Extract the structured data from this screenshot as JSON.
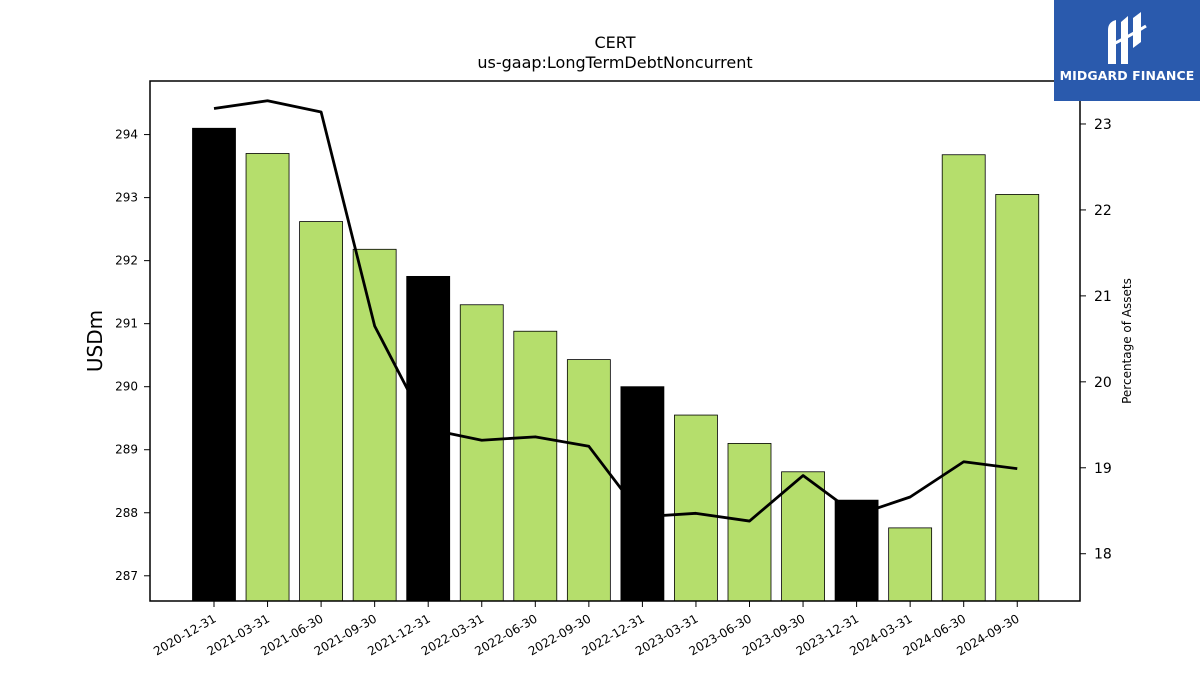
{
  "chart_data": {
    "type": "bar",
    "title": "CERT",
    "subtitle": "us-gaap:LongTermDebtNoncurrent",
    "ylabel": "USDm",
    "y2label": "Percentage of Assets",
    "categories": [
      "2020-12-31",
      "2021-03-31",
      "2021-06-30",
      "2021-09-30",
      "2021-12-31",
      "2022-03-31",
      "2022-06-30",
      "2022-09-30",
      "2022-12-31",
      "2023-03-31",
      "2023-06-30",
      "2023-09-30",
      "2023-12-31",
      "2024-03-31",
      "2024-06-30",
      "2024-09-30"
    ],
    "series": [
      {
        "type": "bar",
        "values": [
          294.1,
          293.7,
          292.62,
          292.18,
          291.75,
          291.3,
          290.88,
          290.43,
          290.0,
          289.55,
          289.1,
          288.65,
          288.2,
          287.76,
          293.68,
          293.05
        ],
        "colors": [
          "#000000",
          "#b5de6c",
          "#b5de6c",
          "#b5de6c",
          "#000000",
          "#b5de6c",
          "#b5de6c",
          "#b5de6c",
          "#000000",
          "#b5de6c",
          "#b5de6c",
          "#b5de6c",
          "#000000",
          "#b5de6c",
          "#b5de6c",
          "#b5de6c"
        ]
      },
      {
        "type": "line",
        "axis": "right",
        "values": [
          23.18,
          23.27,
          23.14,
          20.65,
          19.45,
          19.32,
          19.36,
          19.25,
          18.43,
          18.47,
          18.38,
          18.91,
          18.45,
          18.66,
          19.07,
          18.99
        ]
      }
    ],
    "ylim": [
      286.6,
      294.85
    ],
    "yticks": [
      287,
      288,
      289,
      290,
      291,
      292,
      293,
      294
    ],
    "y2lim": [
      17.45,
      23.5
    ],
    "y2ticks": [
      18,
      19,
      20,
      21,
      22,
      23
    ],
    "grid": false
  },
  "logo": {
    "text": "MIDGARD FINANCE"
  }
}
